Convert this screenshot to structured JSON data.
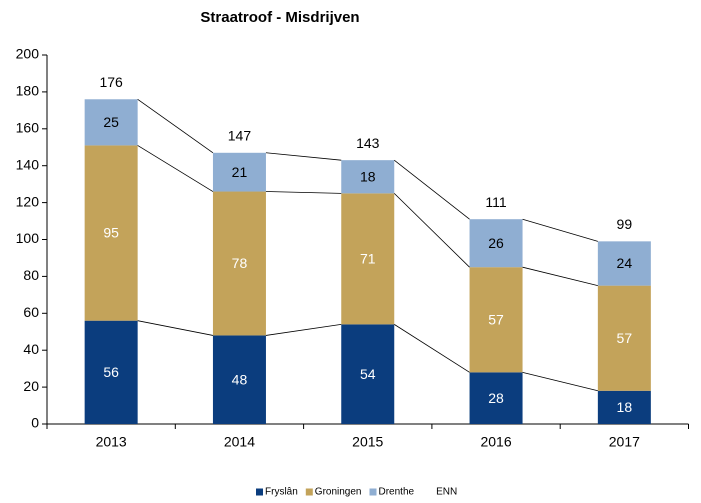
{
  "chart_data": {
    "type": "stacked_bar",
    "title": "Straatroof - Misdrijven",
    "categories": [
      "2013",
      "2014",
      "2015",
      "2016",
      "2017"
    ],
    "series": [
      {
        "name": "Fryslân",
        "color": "#0b3d7e",
        "values": [
          56,
          48,
          54,
          28,
          18
        ]
      },
      {
        "name": "Groningen",
        "color": "#c3a35a",
        "values": [
          95,
          78,
          71,
          57,
          57
        ]
      },
      {
        "name": "Drenthe",
        "color": "#8faed2",
        "values": [
          25,
          21,
          18,
          26,
          24
        ]
      }
    ],
    "totals": {
      "name": "ENN",
      "values": [
        176,
        147,
        143,
        111,
        99
      ]
    },
    "ylim": [
      0,
      200
    ],
    "yticks": [
      0,
      20,
      40,
      60,
      80,
      100,
      120,
      140,
      160,
      180,
      200
    ],
    "grid": false,
    "legend": "bottom"
  }
}
